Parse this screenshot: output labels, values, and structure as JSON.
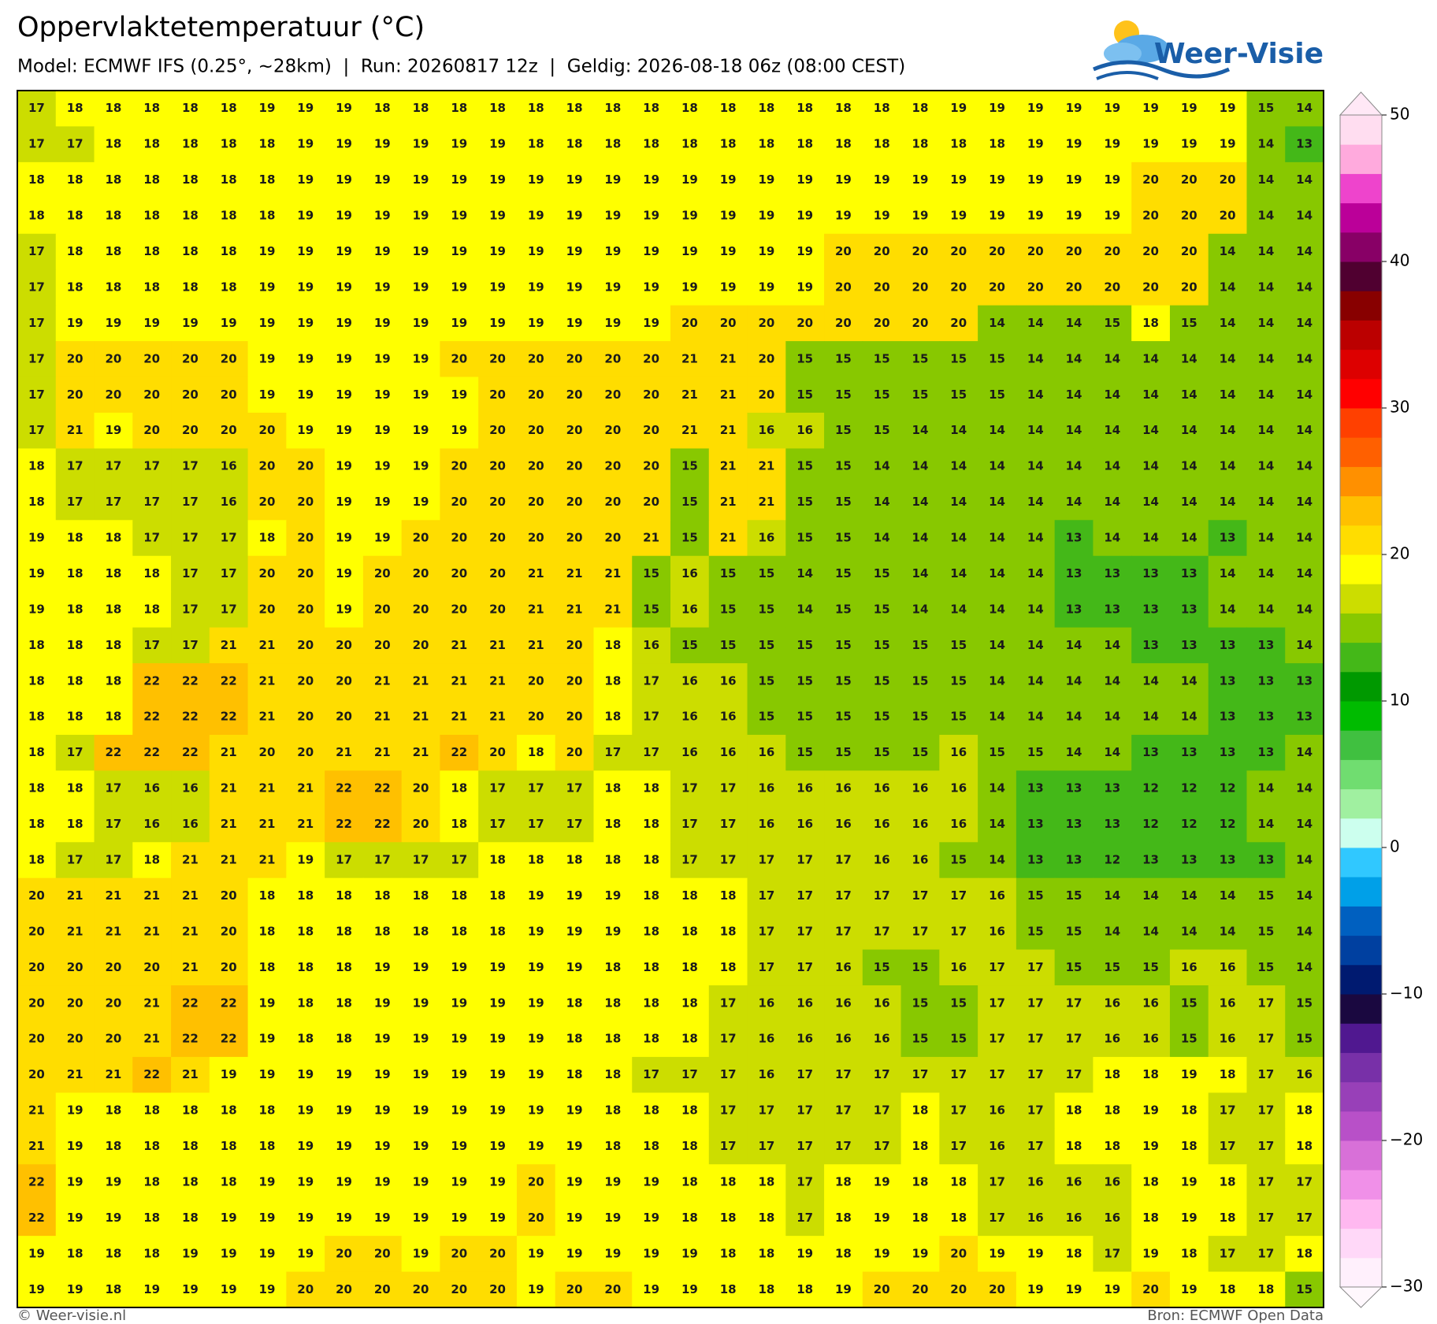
{
  "header": {
    "title": "Oppervlaktetemperatuur (°C)",
    "subtitle": "Model: ECMWF IFS (0.25°, ~28km)  |  Run: 20260817 12z  |  Geldig: 2026-08-18 06z (08:00 CEST)"
  },
  "logo": "Weer-Visie",
  "map": {
    "grid": [
      [
        17,
        18,
        18,
        18,
        18,
        18,
        19,
        19,
        19,
        18,
        18,
        18,
        18,
        18,
        18,
        18,
        18,
        18,
        18,
        18,
        18,
        18,
        18,
        18,
        19,
        19,
        19,
        19,
        19,
        19,
        19,
        19,
        15,
        14
      ],
      [
        17,
        17,
        18,
        18,
        18,
        18,
        18,
        19,
        19,
        19,
        19,
        19,
        19,
        18,
        18,
        18,
        18,
        18,
        18,
        18,
        18,
        18,
        18,
        18,
        18,
        18,
        19,
        19,
        19,
        19,
        19,
        19,
        14,
        13
      ],
      [
        18,
        18,
        18,
        18,
        18,
        18,
        18,
        19,
        19,
        19,
        19,
        19,
        19,
        19,
        19,
        19,
        19,
        19,
        19,
        19,
        19,
        19,
        19,
        19,
        19,
        19,
        19,
        19,
        19,
        20,
        20,
        20,
        14,
        14
      ],
      [
        18,
        18,
        18,
        18,
        18,
        18,
        18,
        19,
        19,
        19,
        19,
        19,
        19,
        19,
        19,
        19,
        19,
        19,
        19,
        19,
        19,
        19,
        19,
        19,
        19,
        19,
        19,
        19,
        19,
        20,
        20,
        20,
        14,
        14
      ],
      [
        17,
        18,
        18,
        18,
        18,
        18,
        19,
        19,
        19,
        19,
        19,
        19,
        19,
        19,
        19,
        19,
        19,
        19,
        19,
        19,
        19,
        20,
        20,
        20,
        20,
        20,
        20,
        20,
        20,
        20,
        20,
        14,
        14,
        14
      ],
      [
        17,
        18,
        18,
        18,
        18,
        18,
        19,
        19,
        19,
        19,
        19,
        19,
        19,
        19,
        19,
        19,
        19,
        19,
        19,
        19,
        19,
        20,
        20,
        20,
        20,
        20,
        20,
        20,
        20,
        20,
        20,
        14,
        14,
        14
      ],
      [
        17,
        19,
        19,
        19,
        19,
        19,
        19,
        19,
        19,
        19,
        19,
        19,
        19,
        19,
        19,
        19,
        19,
        20,
        20,
        20,
        20,
        20,
        20,
        20,
        20,
        14,
        14,
        14,
        15,
        18,
        15,
        14,
        14,
        14
      ],
      [
        17,
        20,
        20,
        20,
        20,
        20,
        19,
        19,
        19,
        19,
        19,
        20,
        20,
        20,
        20,
        20,
        20,
        21,
        21,
        20,
        15,
        15,
        15,
        15,
        15,
        15,
        14,
        14,
        14,
        14,
        14,
        14,
        14,
        14
      ],
      [
        17,
        20,
        20,
        20,
        20,
        20,
        19,
        19,
        19,
        19,
        19,
        19,
        20,
        20,
        20,
        20,
        20,
        21,
        21,
        20,
        15,
        15,
        15,
        15,
        15,
        15,
        14,
        14,
        14,
        14,
        14,
        14,
        14,
        14
      ],
      [
        17,
        21,
        19,
        20,
        20,
        20,
        20,
        19,
        19,
        19,
        19,
        19,
        20,
        20,
        20,
        20,
        20,
        21,
        21,
        16,
        16,
        15,
        15,
        14,
        14,
        14,
        14,
        14,
        14,
        14,
        14,
        14,
        14,
        14
      ],
      [
        18,
        17,
        17,
        17,
        17,
        16,
        20,
        20,
        19,
        19,
        19,
        20,
        20,
        20,
        20,
        20,
        20,
        15,
        21,
        21,
        15,
        15,
        14,
        14,
        14,
        14,
        14,
        14,
        14,
        14,
        14,
        14,
        14,
        14
      ],
      [
        18,
        17,
        17,
        17,
        17,
        16,
        20,
        20,
        19,
        19,
        19,
        20,
        20,
        20,
        20,
        20,
        20,
        15,
        21,
        21,
        15,
        15,
        14,
        14,
        14,
        14,
        14,
        14,
        14,
        14,
        14,
        14,
        14,
        14
      ],
      [
        19,
        18,
        18,
        17,
        17,
        17,
        18,
        20,
        19,
        19,
        20,
        20,
        20,
        20,
        20,
        20,
        21,
        15,
        21,
        16,
        15,
        15,
        14,
        14,
        14,
        14,
        14,
        13,
        14,
        14,
        14,
        13,
        14,
        14
      ],
      [
        19,
        18,
        18,
        18,
        17,
        17,
        20,
        20,
        19,
        20,
        20,
        20,
        20,
        21,
        21,
        21,
        15,
        16,
        15,
        15,
        14,
        15,
        15,
        14,
        14,
        14,
        14,
        13,
        13,
        13,
        13,
        14,
        14,
        14
      ],
      [
        19,
        18,
        18,
        18,
        17,
        17,
        20,
        20,
        19,
        20,
        20,
        20,
        20,
        21,
        21,
        21,
        15,
        16,
        15,
        15,
        14,
        15,
        15,
        14,
        14,
        14,
        14,
        13,
        13,
        13,
        13,
        14,
        14,
        14
      ],
      [
        18,
        18,
        18,
        17,
        17,
        21,
        21,
        20,
        20,
        20,
        20,
        21,
        21,
        21,
        20,
        18,
        16,
        15,
        15,
        15,
        15,
        15,
        15,
        15,
        15,
        14,
        14,
        14,
        14,
        13,
        13,
        13,
        13,
        14
      ],
      [
        18,
        18,
        18,
        22,
        22,
        22,
        21,
        20,
        20,
        21,
        21,
        21,
        21,
        20,
        20,
        18,
        17,
        16,
        16,
        15,
        15,
        15,
        15,
        15,
        15,
        14,
        14,
        14,
        14,
        14,
        14,
        13,
        13,
        13
      ],
      [
        18,
        18,
        18,
        22,
        22,
        22,
        21,
        20,
        20,
        21,
        21,
        21,
        21,
        20,
        20,
        18,
        17,
        16,
        16,
        15,
        15,
        15,
        15,
        15,
        15,
        14,
        14,
        14,
        14,
        14,
        14,
        13,
        13,
        13
      ],
      [
        18,
        17,
        22,
        22,
        22,
        21,
        20,
        20,
        21,
        21,
        21,
        22,
        20,
        18,
        20,
        17,
        17,
        16,
        16,
        16,
        15,
        15,
        15,
        15,
        16,
        15,
        15,
        14,
        14,
        13,
        13,
        13,
        13,
        14
      ],
      [
        18,
        18,
        17,
        16,
        16,
        21,
        21,
        21,
        22,
        22,
        20,
        18,
        17,
        17,
        17,
        18,
        18,
        17,
        17,
        16,
        16,
        16,
        16,
        16,
        16,
        14,
        13,
        13,
        13,
        12,
        12,
        12,
        14,
        14
      ],
      [
        18,
        18,
        17,
        16,
        16,
        21,
        21,
        21,
        22,
        22,
        20,
        18,
        17,
        17,
        17,
        18,
        18,
        17,
        17,
        16,
        16,
        16,
        16,
        16,
        16,
        14,
        13,
        13,
        13,
        12,
        12,
        12,
        14,
        14
      ],
      [
        18,
        17,
        17,
        18,
        21,
        21,
        21,
        19,
        17,
        17,
        17,
        17,
        18,
        18,
        18,
        18,
        18,
        17,
        17,
        17,
        17,
        17,
        16,
        16,
        15,
        14,
        13,
        13,
        12,
        13,
        13,
        13,
        13,
        14
      ],
      [
        20,
        21,
        21,
        21,
        21,
        20,
        18,
        18,
        18,
        18,
        18,
        18,
        18,
        19,
        19,
        19,
        18,
        18,
        18,
        17,
        17,
        17,
        17,
        17,
        17,
        16,
        15,
        15,
        14,
        14,
        14,
        14,
        15,
        14
      ],
      [
        20,
        21,
        21,
        21,
        21,
        20,
        18,
        18,
        18,
        18,
        18,
        18,
        18,
        19,
        19,
        19,
        18,
        18,
        18,
        17,
        17,
        17,
        17,
        17,
        17,
        16,
        15,
        15,
        14,
        14,
        14,
        14,
        15,
        14
      ],
      [
        20,
        20,
        20,
        20,
        21,
        20,
        18,
        18,
        18,
        19,
        19,
        19,
        19,
        19,
        19,
        18,
        18,
        18,
        18,
        17,
        17,
        16,
        15,
        15,
        16,
        17,
        17,
        15,
        15,
        15,
        16,
        16,
        15,
        14
      ],
      [
        20,
        20,
        20,
        21,
        22,
        22,
        19,
        18,
        18,
        19,
        19,
        19,
        19,
        19,
        18,
        18,
        18,
        18,
        17,
        16,
        16,
        16,
        16,
        15,
        15,
        17,
        17,
        17,
        16,
        16,
        15,
        16,
        17,
        15
      ],
      [
        20,
        20,
        20,
        21,
        22,
        22,
        19,
        18,
        18,
        19,
        19,
        19,
        19,
        19,
        18,
        18,
        18,
        18,
        17,
        16,
        16,
        16,
        16,
        15,
        15,
        17,
        17,
        17,
        16,
        16,
        15,
        16,
        17,
        15
      ],
      [
        20,
        21,
        21,
        22,
        21,
        19,
        19,
        19,
        19,
        19,
        19,
        19,
        19,
        19,
        18,
        18,
        17,
        17,
        17,
        16,
        17,
        17,
        17,
        17,
        17,
        17,
        17,
        17,
        18,
        18,
        19,
        18,
        17,
        16
      ],
      [
        21,
        19,
        18,
        18,
        18,
        18,
        18,
        19,
        19,
        19,
        19,
        19,
        19,
        19,
        19,
        18,
        18,
        18,
        17,
        17,
        17,
        17,
        17,
        18,
        17,
        16,
        17,
        18,
        18,
        19,
        18,
        17,
        17,
        18
      ],
      [
        21,
        19,
        18,
        18,
        18,
        18,
        18,
        19,
        19,
        19,
        19,
        19,
        19,
        19,
        19,
        18,
        18,
        18,
        17,
        17,
        17,
        17,
        17,
        18,
        17,
        16,
        17,
        18,
        18,
        19,
        18,
        17,
        17,
        18
      ],
      [
        22,
        19,
        19,
        18,
        18,
        18,
        19,
        19,
        19,
        19,
        19,
        19,
        19,
        20,
        19,
        19,
        19,
        18,
        18,
        18,
        17,
        18,
        19,
        18,
        18,
        17,
        16,
        16,
        16,
        18,
        19,
        18,
        17,
        17
      ],
      [
        22,
        19,
        19,
        18,
        18,
        19,
        19,
        19,
        19,
        19,
        19,
        19,
        19,
        20,
        19,
        19,
        19,
        18,
        18,
        18,
        17,
        18,
        19,
        18,
        18,
        17,
        16,
        16,
        16,
        18,
        19,
        18,
        17,
        17
      ],
      [
        19,
        18,
        18,
        18,
        19,
        19,
        19,
        19,
        20,
        20,
        19,
        20,
        20,
        19,
        19,
        19,
        19,
        19,
        18,
        18,
        19,
        18,
        19,
        19,
        20,
        19,
        19,
        18,
        17,
        19,
        18,
        17,
        17,
        18
      ],
      [
        19,
        19,
        18,
        19,
        19,
        19,
        19,
        20,
        20,
        20,
        20,
        20,
        20,
        19,
        20,
        20,
        19,
        19,
        18,
        18,
        18,
        19,
        20,
        20,
        20,
        20,
        19,
        19,
        19,
        20,
        19,
        18,
        18,
        15
      ]
    ]
  },
  "colorbar": {
    "lim": [
      -30,
      50
    ],
    "ticks": [
      {
        "value": -30,
        "label": "−30"
      },
      {
        "value": -20,
        "label": "−20"
      },
      {
        "value": -10,
        "label": "−10"
      },
      0,
      10,
      20,
      30,
      40,
      50
    ],
    "colors": [
      "#fff0fc",
      "#ffd8f8",
      "#ffb8f0",
      "#f090e8",
      "#d870d8",
      "#b850c8",
      "#9840b8",
      "#7830a8",
      "#501890",
      "#1a0840",
      "#001a70",
      "#0040a0",
      "#0060c0",
      "#00a0e8",
      "#30c8ff",
      "#ccffee",
      "#a0f0a0",
      "#70dd70",
      "#40c040",
      "#00bb00",
      "#009900",
      "#44b818",
      "#88c800",
      "#ccdd00",
      "#ffff00",
      "#ffdd00",
      "#ffc000",
      "#ff9000",
      "#ff6000",
      "#ff4000",
      "#ff0000",
      "#dd0000",
      "#bb0000",
      "#880000",
      "#500030",
      "#880066",
      "#bb0099",
      "#ee44cc",
      "#ffaadd",
      "#ffddf0"
    ]
  },
  "footer": {
    "left": "© Weer-visie.nl",
    "right": "Bron: ECMWF Open Data"
  }
}
